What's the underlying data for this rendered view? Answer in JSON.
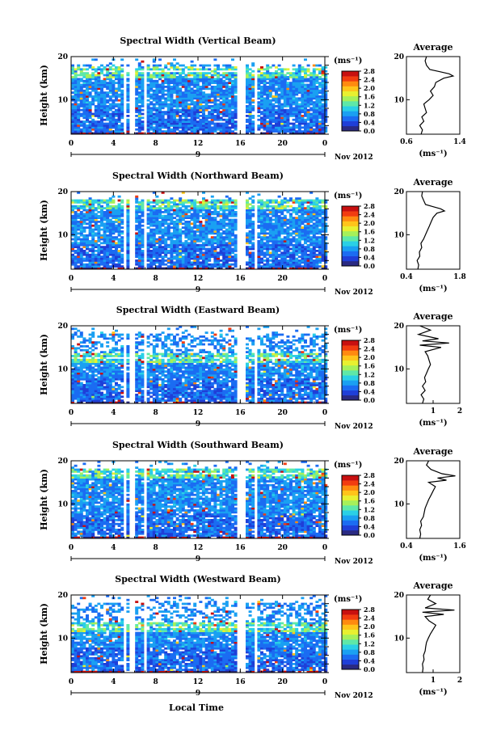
{
  "figure": {
    "xlabel": "Local Time",
    "date_label": "Nov 2012",
    "day_label": "9"
  },
  "chart_data": [
    {
      "type": "heatmap",
      "title": "Spectral Width (Vertical Beam)",
      "ylabel": "Height (km)",
      "xlim": [
        0,
        24
      ],
      "ylim": [
        2,
        20
      ],
      "x_ticks": [
        "0",
        "4",
        "8",
        "12",
        "16",
        "20",
        "0"
      ],
      "y_ticks": [
        "10",
        "20"
      ],
      "colorbar": {
        "unit": "(ms⁻¹)",
        "ticks": [
          "0.0",
          "0.4",
          "0.8",
          "1.2",
          "1.6",
          "2.0",
          "2.4",
          "2.8"
        ],
        "range": [
          0,
          2.8
        ]
      },
      "gaps_hours": [
        [
          4.7,
          5.0
        ],
        [
          5.4,
          6.0
        ],
        [
          6.8,
          7.1
        ],
        [
          15.6,
          16.5
        ],
        [
          17.3,
          17.6
        ]
      ],
      "tropopause_km": 16.5,
      "average": {
        "title": "Average",
        "xlim": [
          0.6,
          1.4
        ],
        "x_ticks": [
          "0.6",
          "1.4"
        ],
        "y_ticks": [
          "10",
          "20"
        ],
        "xlabel": "(ms⁻¹)",
        "height_km": [
          2,
          3,
          4,
          5,
          6,
          7,
          8,
          9,
          10,
          11,
          12,
          13,
          14,
          15,
          15.5,
          16,
          16.5,
          17,
          18,
          19,
          20
        ],
        "values": [
          0.82,
          0.84,
          0.8,
          0.86,
          0.83,
          0.9,
          0.88,
          0.86,
          0.94,
          1.0,
          0.96,
          1.02,
          1.04,
          1.16,
          1.3,
          1.24,
          1.1,
          0.95,
          0.9,
          0.88,
          0.9
        ]
      }
    },
    {
      "type": "heatmap",
      "title": "Spectral Width (Northward Beam)",
      "ylabel": "Height (km)",
      "xlim": [
        0,
        24
      ],
      "ylim": [
        2,
        20
      ],
      "x_ticks": [
        "0",
        "4",
        "8",
        "12",
        "16",
        "20",
        "0"
      ],
      "y_ticks": [
        "10",
        "20"
      ],
      "colorbar": {
        "unit": "(ms⁻¹)",
        "ticks": [
          "0.0",
          "0.4",
          "0.8",
          "1.2",
          "1.6",
          "2.0",
          "2.4",
          "2.8"
        ],
        "range": [
          0,
          2.8
        ]
      },
      "gaps_hours": [
        [
          4.7,
          5.0
        ],
        [
          5.4,
          6.0
        ],
        [
          6.8,
          7.1
        ],
        [
          15.6,
          16.3
        ],
        [
          17.3,
          17.6
        ]
      ],
      "tropopause_km": 17.0,
      "average": {
        "title": "Average",
        "xlim": [
          0.4,
          1.8
        ],
        "x_ticks": [
          "0.4",
          "1.8"
        ],
        "y_ticks": [
          "10",
          "20"
        ],
        "xlabel": "(ms⁻¹)",
        "height_km": [
          2,
          3,
          4,
          5,
          6,
          7,
          8,
          9,
          10,
          11,
          12,
          13,
          14,
          15,
          15.5,
          16,
          16.5,
          17,
          18,
          19,
          20
        ],
        "values": [
          0.7,
          0.72,
          0.68,
          0.75,
          0.74,
          0.8,
          0.78,
          0.85,
          0.9,
          0.95,
          1.0,
          1.05,
          1.1,
          1.2,
          1.4,
          1.3,
          1.1,
          0.9,
          0.85,
          0.8,
          0.82
        ]
      }
    },
    {
      "type": "heatmap",
      "title": "Spectral Width (Eastward Beam)",
      "ylabel": "Height (km)",
      "xlim": [
        0,
        24
      ],
      "ylim": [
        2,
        20
      ],
      "x_ticks": [
        "0",
        "4",
        "8",
        "12",
        "16",
        "20",
        "0"
      ],
      "y_ticks": [
        "10",
        "20"
      ],
      "colorbar": {
        "unit": "(ms⁻¹)",
        "ticks": [
          "0.0",
          "0.4",
          "0.8",
          "1.2",
          "1.6",
          "2.0",
          "2.4",
          "2.8"
        ],
        "range": [
          0,
          2.8
        ]
      },
      "gaps_hours": [
        [
          4.7,
          5.0
        ],
        [
          5.4,
          6.0
        ],
        [
          6.8,
          7.1
        ],
        [
          15.6,
          16.3
        ],
        [
          17.3,
          17.6
        ]
      ],
      "tropopause_km": 12.5,
      "average": {
        "title": "Average",
        "xlim": [
          0,
          2
        ],
        "x_ticks": [
          "1",
          "2"
        ],
        "y_ticks": [
          "10",
          "20"
        ],
        "xlabel": "(ms⁻¹)",
        "height_km": [
          2,
          3,
          4,
          5,
          6,
          7,
          8,
          9,
          10,
          11,
          12,
          13,
          14,
          15,
          15.5,
          16,
          16.5,
          17,
          18,
          19,
          20
        ],
        "values": [
          0.6,
          0.65,
          0.55,
          0.7,
          0.6,
          0.72,
          0.68,
          0.75,
          0.82,
          0.9,
          0.85,
          0.8,
          0.7,
          1.3,
          0.5,
          1.6,
          0.6,
          1.2,
          0.45,
          0.9,
          0.5
        ]
      }
    },
    {
      "type": "heatmap",
      "title": "Spectral Width (Southward Beam)",
      "ylabel": "Height (km)",
      "xlim": [
        0,
        24
      ],
      "ylim": [
        2,
        20
      ],
      "x_ticks": [
        "0",
        "4",
        "8",
        "12",
        "16",
        "20",
        "0"
      ],
      "y_ticks": [
        "10",
        "20"
      ],
      "colorbar": {
        "unit": "(ms⁻¹)",
        "ticks": [
          "0.0",
          "0.4",
          "0.8",
          "1.2",
          "1.6",
          "2.0",
          "2.4",
          "2.8"
        ],
        "range": [
          0,
          2.8
        ]
      },
      "gaps_hours": [
        [
          4.7,
          5.0
        ],
        [
          5.4,
          6.0
        ],
        [
          6.8,
          7.1
        ],
        [
          15.6,
          16.3
        ],
        [
          17.3,
          17.6
        ]
      ],
      "tropopause_km": 17.0,
      "average": {
        "title": "Average",
        "xlim": [
          0.4,
          1.6
        ],
        "x_ticks": [
          "0.4",
          "1.6"
        ],
        "y_ticks": [
          "10",
          "20"
        ],
        "xlabel": "(ms⁻¹)",
        "height_km": [
          2,
          3,
          4,
          5,
          6,
          7,
          8,
          9,
          10,
          11,
          12,
          13,
          14,
          15,
          15.5,
          16,
          16.5,
          17,
          18,
          19,
          20
        ],
        "values": [
          0.7,
          0.72,
          0.7,
          0.74,
          0.72,
          0.78,
          0.8,
          0.82,
          0.86,
          0.9,
          0.95,
          1.0,
          1.05,
          0.9,
          1.3,
          1.1,
          1.5,
          1.2,
          0.95,
          0.85,
          0.9
        ]
      }
    },
    {
      "type": "heatmap",
      "title": "Spectral Width (Westward Beam)",
      "ylabel": "Height (km)",
      "xlim": [
        0,
        24
      ],
      "ylim": [
        2,
        20
      ],
      "x_ticks": [
        "0",
        "4",
        "8",
        "12",
        "16",
        "20",
        "0"
      ],
      "y_ticks": [
        "10",
        "20"
      ],
      "colorbar": {
        "unit": "(ms⁻¹)",
        "ticks": [
          "0.0",
          "0.4",
          "0.8",
          "1.2",
          "1.6",
          "2.0",
          "2.4",
          "2.8"
        ],
        "range": [
          0,
          2.8
        ]
      },
      "gaps_hours": [
        [
          4.7,
          5.0
        ],
        [
          5.4,
          6.0
        ],
        [
          6.8,
          7.1
        ],
        [
          15.6,
          16.3
        ],
        [
          17.3,
          17.6
        ]
      ],
      "tropopause_km": 12.5,
      "average": {
        "title": "Average",
        "xlim": [
          0,
          2
        ],
        "x_ticks": [
          "1",
          "2"
        ],
        "y_ticks": [
          "10",
          "20"
        ],
        "xlabel": "(ms⁻¹)",
        "height_km": [
          2,
          3,
          4,
          5,
          6,
          7,
          8,
          9,
          10,
          11,
          12,
          13,
          14,
          15,
          15.5,
          16,
          16.5,
          17,
          18,
          19,
          20
        ],
        "values": [
          0.6,
          0.62,
          0.6,
          0.66,
          0.64,
          0.7,
          0.72,
          0.75,
          0.82,
          0.9,
          1.0,
          1.1,
          0.85,
          0.7,
          1.4,
          0.6,
          1.8,
          0.7,
          1.1,
          0.8,
          0.9
        ]
      }
    }
  ],
  "colormap": [
    "#2a2a82",
    "#1f3fd8",
    "#1b6cf2",
    "#1aa0f2",
    "#2ad0e6",
    "#5ee8a8",
    "#a6f05a",
    "#e8f030",
    "#ffc41a",
    "#ff8a10",
    "#f23c10",
    "#c81010"
  ]
}
